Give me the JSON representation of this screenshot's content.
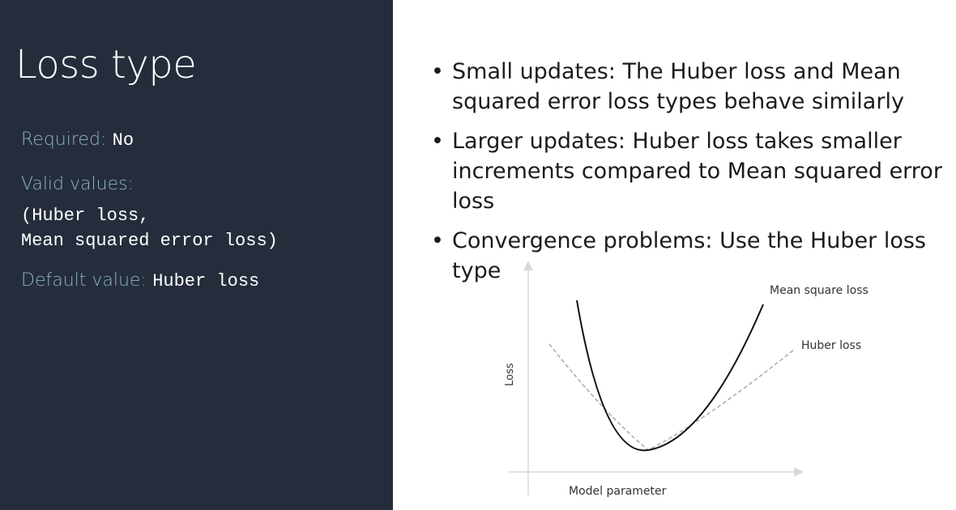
{
  "slide": {
    "title": "Loss type",
    "required": {
      "label": "Required:",
      "value": "No"
    },
    "valid": {
      "label": "Valid values:",
      "lines": [
        "(Huber loss,",
        "Mean squared error loss)"
      ]
    },
    "default": {
      "label": "Default value:",
      "value": "Huber loss"
    }
  },
  "bullets": [
    "Small updates: The Huber loss and Mean squared error loss types behave similarly",
    "Larger updates: Huber loss takes smaller increments compared to Mean squared error loss",
    "Convergence problems: Use the Huber loss type"
  ],
  "diagram": {
    "y_axis_label": "Loss",
    "x_axis_label": "Model parameter",
    "curves": [
      {
        "name": "Mean square loss",
        "style": "solid",
        "color": "#111111"
      },
      {
        "name": "Huber loss",
        "style": "dashed",
        "color": "#aaaaaa"
      }
    ]
  }
}
